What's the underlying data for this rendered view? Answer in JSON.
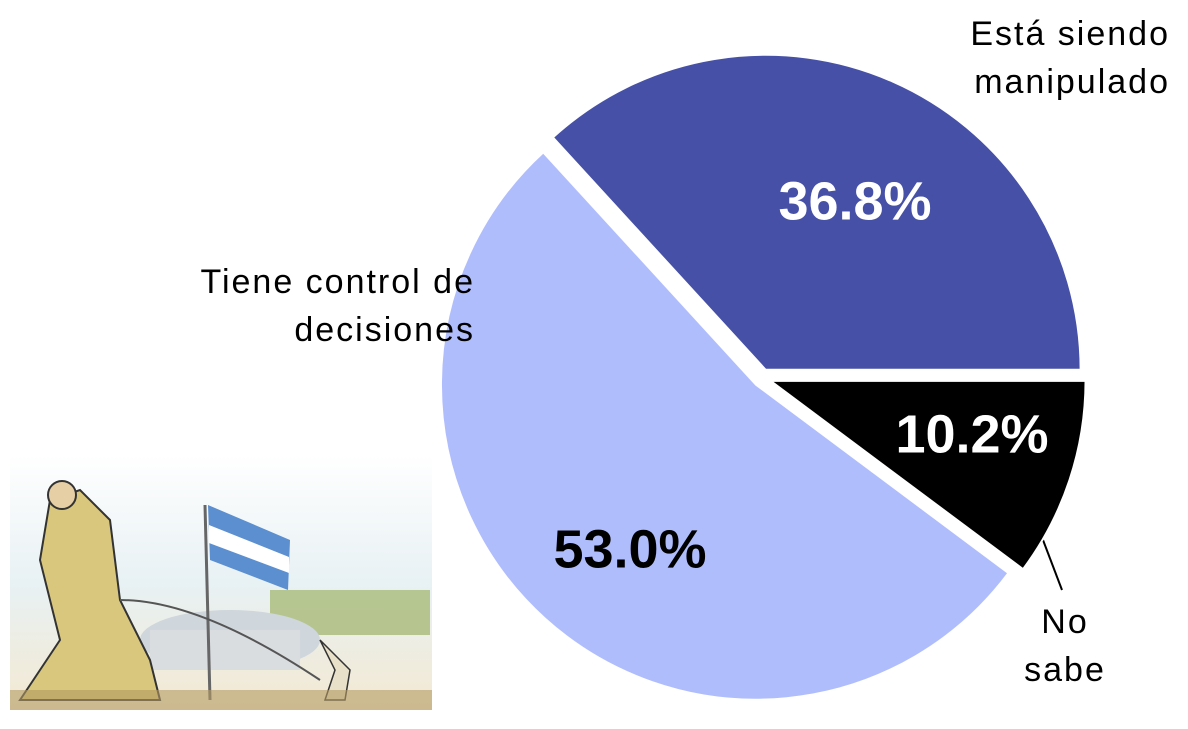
{
  "chart_data": {
    "type": "pie",
    "categories": [
      "Está siendo manipulado",
      "No sabe",
      "Tiene control de decisiones"
    ],
    "values": [
      36.8,
      10.2,
      53
    ],
    "value_labels": [
      "36.8%",
      "10.2%",
      "53.0%"
    ],
    "colors": [
      "#4650a6",
      "#000000",
      "#b0bdfc"
    ]
  }
}
